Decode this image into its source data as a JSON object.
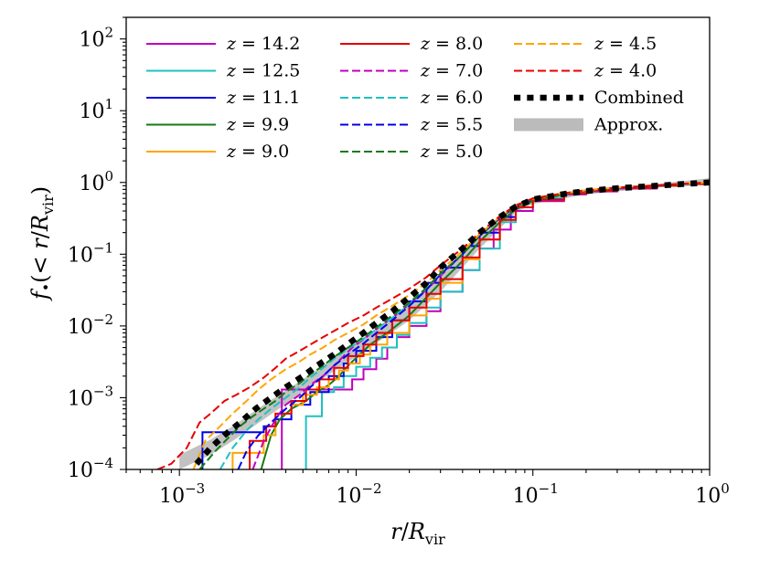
{
  "chart_data": {
    "type": "line",
    "title": "",
    "xlabel": "r/R_vir",
    "ylabel": "f•(< r/R_vir)",
    "xscale": "log",
    "yscale": "log",
    "xlim": [
      0.0005,
      1.0
    ],
    "ylim": [
      0.0001,
      200
    ],
    "x_ticks": [
      {
        "value": 0.001,
        "base": "10",
        "exp": "−3"
      },
      {
        "value": 0.01,
        "base": "10",
        "exp": "−2"
      },
      {
        "value": 0.1,
        "base": "10",
        "exp": "−1"
      },
      {
        "value": 1,
        "base": "10",
        "exp": "0"
      }
    ],
    "y_ticks": [
      {
        "value": 0.0001,
        "base": "10",
        "exp": "−4"
      },
      {
        "value": 0.001,
        "base": "10",
        "exp": "−3"
      },
      {
        "value": 0.01,
        "base": "10",
        "exp": "−2"
      },
      {
        "value": 0.1,
        "base": "10",
        "exp": "−1"
      },
      {
        "value": 1,
        "base": "10",
        "exp": "0"
      },
      {
        "value": 10,
        "base": "10",
        "exp": "1"
      },
      {
        "value": 100,
        "base": "10",
        "exp": "2"
      }
    ],
    "legend_position": "top-left",
    "series": [
      {
        "name": "z = 14.2",
        "label_var": "z",
        "label_val": "14.2",
        "color": "#bf00bf",
        "dash": "solid",
        "step": true,
        "x": [
          0.0038,
          0.0038,
          0.0052,
          0.0062,
          0.0075,
          0.0085,
          0.0095,
          0.011,
          0.013,
          0.015,
          0.017,
          0.02,
          0.025,
          0.03,
          0.04,
          0.05,
          0.06,
          0.075,
          0.1,
          0.15,
          0.2,
          0.3,
          0.5,
          0.7,
          1.0
        ],
        "y": [
          0.0001,
          0.0013,
          0.0013,
          0.0013,
          0.0013,
          0.0013,
          0.0018,
          0.0025,
          0.0035,
          0.005,
          0.007,
          0.01,
          0.016,
          0.03,
          0.06,
          0.12,
          0.22,
          0.4,
          0.55,
          0.68,
          0.75,
          0.82,
          0.9,
          0.95,
          1.0
        ]
      },
      {
        "name": "z = 12.5",
        "label_var": "z",
        "label_val": "12.5",
        "color": "#20c0c0",
        "dash": "solid",
        "step": true,
        "x": [
          0.0052,
          0.0052,
          0.0064,
          0.0064,
          0.0075,
          0.0085,
          0.01,
          0.012,
          0.014,
          0.017,
          0.02,
          0.025,
          0.03,
          0.04,
          0.05,
          0.065,
          0.08,
          0.1,
          0.15,
          0.2,
          0.3,
          0.5,
          0.7,
          1.0
        ],
        "y": [
          0.0001,
          0.00055,
          0.00055,
          0.0012,
          0.0014,
          0.002,
          0.0027,
          0.0036,
          0.005,
          0.0075,
          0.011,
          0.018,
          0.03,
          0.06,
          0.12,
          0.28,
          0.45,
          0.6,
          0.72,
          0.78,
          0.84,
          0.9,
          0.95,
          1.0
        ]
      },
      {
        "name": "z = 11.1",
        "label_var": "z",
        "label_val": "11.1",
        "color": "#0000e6",
        "dash": "solid",
        "step": true,
        "x": [
          0.00135,
          0.00135,
          0.0016,
          0.002,
          0.0025,
          0.003,
          0.0035,
          0.0043,
          0.0055,
          0.007,
          0.0085,
          0.01,
          0.013,
          0.016,
          0.02,
          0.025,
          0.03,
          0.04,
          0.05,
          0.065,
          0.08,
          0.1,
          0.15,
          0.2,
          0.3,
          0.5,
          0.7,
          1.0
        ],
        "y": [
          0.0001,
          0.00033,
          0.00033,
          0.00033,
          0.00033,
          0.0004,
          0.0005,
          0.0008,
          0.0012,
          0.002,
          0.003,
          0.0045,
          0.007,
          0.012,
          0.022,
          0.04,
          0.065,
          0.13,
          0.2,
          0.33,
          0.45,
          0.58,
          0.7,
          0.77,
          0.84,
          0.9,
          0.95,
          1.0
        ]
      },
      {
        "name": "z = 9.9",
        "label_var": "z",
        "label_val": "9.9",
        "color": "#157a15",
        "dash": "solid",
        "step": false,
        "x": [
          0.0029,
          0.0033,
          0.0037,
          0.0043,
          0.0052,
          0.006,
          0.007,
          0.008,
          0.009,
          0.0105,
          0.012,
          0.015,
          0.02,
          0.025,
          0.03,
          0.04,
          0.05,
          0.065,
          0.08,
          0.1,
          0.15,
          0.2,
          0.3,
          0.5,
          0.7,
          1.0
        ],
        "y": [
          0.0001,
          0.0003,
          0.0005,
          0.0007,
          0.0009,
          0.0012,
          0.0015,
          0.002,
          0.0028,
          0.004,
          0.0055,
          0.008,
          0.014,
          0.025,
          0.04,
          0.08,
          0.15,
          0.28,
          0.42,
          0.55,
          0.68,
          0.76,
          0.83,
          0.9,
          0.95,
          1.0
        ]
      },
      {
        "name": "z = 9.0",
        "label_var": "z",
        "label_val": "9.0",
        "color": "#ffa500",
        "dash": "solid",
        "step": true,
        "x": [
          0.002,
          0.002,
          0.0026,
          0.003,
          0.0035,
          0.0043,
          0.005,
          0.006,
          0.007,
          0.008,
          0.009,
          0.0105,
          0.012,
          0.015,
          0.02,
          0.025,
          0.03,
          0.04,
          0.05,
          0.065,
          0.08,
          0.1,
          0.15,
          0.2,
          0.3,
          0.5,
          0.7,
          1.0
        ],
        "y": [
          0.0001,
          0.00017,
          0.00017,
          0.0003,
          0.0006,
          0.0008,
          0.0011,
          0.0014,
          0.0018,
          0.0024,
          0.003,
          0.004,
          0.0055,
          0.008,
          0.014,
          0.024,
          0.04,
          0.085,
          0.16,
          0.3,
          0.45,
          0.57,
          0.7,
          0.77,
          0.84,
          0.9,
          0.95,
          1.0
        ]
      },
      {
        "name": "z = 8.0",
        "label_var": "z",
        "label_val": "8.0",
        "color": "#e60000",
        "dash": "solid",
        "step": true,
        "x": [
          0.0025,
          0.0025,
          0.0031,
          0.0031,
          0.0035,
          0.0043,
          0.0052,
          0.0062,
          0.0075,
          0.009,
          0.011,
          0.013,
          0.016,
          0.02,
          0.025,
          0.03,
          0.04,
          0.05,
          0.065,
          0.08,
          0.1,
          0.15,
          0.2,
          0.3,
          0.5,
          0.7,
          1.0
        ],
        "y": [
          0.0001,
          0.00025,
          0.00025,
          0.0004,
          0.0006,
          0.0009,
          0.0013,
          0.0018,
          0.0026,
          0.0038,
          0.0055,
          0.008,
          0.012,
          0.018,
          0.028,
          0.045,
          0.09,
          0.16,
          0.3,
          0.45,
          0.57,
          0.7,
          0.77,
          0.84,
          0.9,
          0.95,
          1.0
        ]
      },
      {
        "name": "z = 7.0",
        "label_var": "z",
        "label_val": "7.0",
        "color": "#bf00bf",
        "dash": "dashed",
        "step": false,
        "x": [
          0.0026,
          0.003,
          0.0035,
          0.004,
          0.0048,
          0.0055,
          0.0065,
          0.0075,
          0.0085,
          0.0095,
          0.011,
          0.013,
          0.016,
          0.02,
          0.025,
          0.03,
          0.04,
          0.05,
          0.065,
          0.08,
          0.1,
          0.15,
          0.2,
          0.3,
          0.5,
          0.7,
          1.0
        ],
        "y": [
          0.0001,
          0.00025,
          0.0005,
          0.0008,
          0.0011,
          0.0015,
          0.002,
          0.0028,
          0.0038,
          0.005,
          0.0065,
          0.009,
          0.013,
          0.02,
          0.032,
          0.05,
          0.1,
          0.18,
          0.32,
          0.46,
          0.58,
          0.7,
          0.77,
          0.84,
          0.9,
          0.95,
          1.0
        ]
      },
      {
        "name": "z = 6.0",
        "label_var": "z",
        "label_val": "6.0",
        "color": "#20c0c0",
        "dash": "dashed",
        "step": false,
        "x": [
          0.0017,
          0.002,
          0.0024,
          0.0028,
          0.0033,
          0.004,
          0.0048,
          0.0055,
          0.0065,
          0.0075,
          0.009,
          0.011,
          0.013,
          0.016,
          0.02,
          0.025,
          0.03,
          0.04,
          0.05,
          0.065,
          0.08,
          0.1,
          0.15,
          0.2,
          0.3,
          0.5,
          0.7,
          1.0
        ],
        "y": [
          0.0001,
          0.0002,
          0.00035,
          0.0005,
          0.0007,
          0.001,
          0.0014,
          0.0019,
          0.0026,
          0.0035,
          0.0048,
          0.0066,
          0.009,
          0.013,
          0.02,
          0.033,
          0.052,
          0.1,
          0.18,
          0.32,
          0.46,
          0.58,
          0.7,
          0.77,
          0.84,
          0.9,
          0.95,
          1.0
        ]
      },
      {
        "name": "z = 5.5",
        "label_var": "z",
        "label_val": "5.5",
        "color": "#0000e6",
        "dash": "dashed",
        "step": false,
        "x": [
          0.00215,
          0.0024,
          0.0028,
          0.0033,
          0.004,
          0.0048,
          0.0055,
          0.0065,
          0.0075,
          0.009,
          0.011,
          0.013,
          0.016,
          0.02,
          0.025,
          0.03,
          0.04,
          0.05,
          0.065,
          0.08,
          0.1,
          0.15,
          0.2,
          0.3,
          0.5,
          0.7,
          1.0
        ],
        "y": [
          0.0001,
          0.00018,
          0.0003,
          0.00045,
          0.0007,
          0.001,
          0.0014,
          0.002,
          0.0028,
          0.004,
          0.0057,
          0.008,
          0.012,
          0.019,
          0.032,
          0.052,
          0.1,
          0.18,
          0.32,
          0.46,
          0.58,
          0.7,
          0.77,
          0.84,
          0.9,
          0.95,
          1.0
        ]
      },
      {
        "name": "z = 5.0",
        "label_var": "z",
        "label_val": "5.0",
        "color": "#157a15",
        "dash": "dashed",
        "step": false,
        "x": [
          0.0013,
          0.0016,
          0.0019,
          0.0022,
          0.0026,
          0.003,
          0.0035,
          0.004,
          0.0048,
          0.0055,
          0.0065,
          0.0075,
          0.009,
          0.011,
          0.013,
          0.016,
          0.02,
          0.025,
          0.03,
          0.04,
          0.05,
          0.065,
          0.08,
          0.1,
          0.15,
          0.2,
          0.3,
          0.5,
          0.7,
          1.0
        ],
        "y": [
          0.0001,
          0.00018,
          0.00028,
          0.0004,
          0.00055,
          0.0007,
          0.0009,
          0.0012,
          0.0016,
          0.0021,
          0.0028,
          0.0037,
          0.005,
          0.007,
          0.0095,
          0.014,
          0.021,
          0.034,
          0.054,
          0.1,
          0.18,
          0.32,
          0.46,
          0.58,
          0.7,
          0.77,
          0.84,
          0.9,
          0.95,
          1.0
        ]
      },
      {
        "name": "z = 4.5",
        "label_var": "z",
        "label_val": "4.5",
        "color": "#ffa500",
        "dash": "dashed",
        "step": false,
        "x": [
          0.0012,
          0.0014,
          0.0017,
          0.002,
          0.0024,
          0.0028,
          0.0033,
          0.004,
          0.0048,
          0.0055,
          0.0065,
          0.0075,
          0.009,
          0.011,
          0.013,
          0.016,
          0.02,
          0.025,
          0.03,
          0.04,
          0.05,
          0.065,
          0.08,
          0.1,
          0.15,
          0.2,
          0.3,
          0.5,
          0.7,
          1.0
        ],
        "y": [
          0.0001,
          0.00025,
          0.0004,
          0.0006,
          0.0009,
          0.0013,
          0.0018,
          0.0025,
          0.0032,
          0.004,
          0.005,
          0.0063,
          0.008,
          0.0105,
          0.014,
          0.019,
          0.027,
          0.04,
          0.06,
          0.11,
          0.19,
          0.33,
          0.47,
          0.59,
          0.71,
          0.78,
          0.85,
          0.91,
          0.96,
          1.0
        ]
      },
      {
        "name": "z = 4.0",
        "label_var": "z",
        "label_val": "4.0",
        "color": "#e60000",
        "dash": "dashed",
        "step": false,
        "x": [
          0.00075,
          0.0009,
          0.0011,
          0.0013,
          0.0015,
          0.0018,
          0.0021,
          0.0025,
          0.003,
          0.0035,
          0.004,
          0.0048,
          0.0055,
          0.0065,
          0.0075,
          0.009,
          0.011,
          0.013,
          0.016,
          0.02,
          0.025,
          0.03,
          0.04,
          0.05,
          0.065,
          0.08,
          0.1,
          0.15,
          0.2,
          0.3,
          0.5,
          0.7,
          1.0
        ],
        "y": [
          0.0001,
          0.00012,
          0.0002,
          0.00045,
          0.0006,
          0.0009,
          0.0011,
          0.0014,
          0.0019,
          0.0026,
          0.0035,
          0.0045,
          0.0055,
          0.007,
          0.0085,
          0.011,
          0.014,
          0.018,
          0.024,
          0.033,
          0.048,
          0.07,
          0.12,
          0.2,
          0.34,
          0.48,
          0.6,
          0.71,
          0.78,
          0.85,
          0.91,
          0.96,
          1.0
        ]
      },
      {
        "name": "Combined",
        "label_text": "Combined",
        "color": "#000000",
        "dash": "dotted",
        "step": false,
        "width": 6.5,
        "x": [
          0.00125,
          0.0015,
          0.0018,
          0.0022,
          0.0027,
          0.0033,
          0.004,
          0.005,
          0.006,
          0.0075,
          0.009,
          0.011,
          0.013,
          0.016,
          0.02,
          0.025,
          0.03,
          0.04,
          0.05,
          0.065,
          0.08,
          0.1,
          0.15,
          0.2,
          0.3,
          0.5,
          0.7,
          1.0
        ],
        "y": [
          0.00012,
          0.0002,
          0.0003,
          0.00045,
          0.0007,
          0.001,
          0.0014,
          0.002,
          0.0028,
          0.004,
          0.0056,
          0.008,
          0.011,
          0.016,
          0.025,
          0.04,
          0.065,
          0.12,
          0.2,
          0.33,
          0.46,
          0.58,
          0.69,
          0.76,
          0.83,
          0.9,
          0.95,
          1.0
        ]
      }
    ],
    "band": {
      "name": "Approx.",
      "label_text": "Approx.",
      "color": "#bbbbbb",
      "x": [
        0.001,
        0.0015,
        0.002,
        0.003,
        0.005,
        0.008,
        0.012,
        0.02,
        0.03,
        0.05,
        0.08,
        0.1,
        0.2,
        0.5,
        1.0
      ],
      "y_low": [
        0.0001,
        0.00016,
        0.00025,
        0.0005,
        0.0012,
        0.0026,
        0.005,
        0.012,
        0.03,
        0.12,
        0.38,
        0.5,
        0.68,
        0.85,
        0.92
      ],
      "y_high": [
        0.00016,
        0.00026,
        0.0004,
        0.0008,
        0.0018,
        0.004,
        0.008,
        0.02,
        0.048,
        0.18,
        0.5,
        0.6,
        0.78,
        0.95,
        1.15
      ]
    }
  }
}
